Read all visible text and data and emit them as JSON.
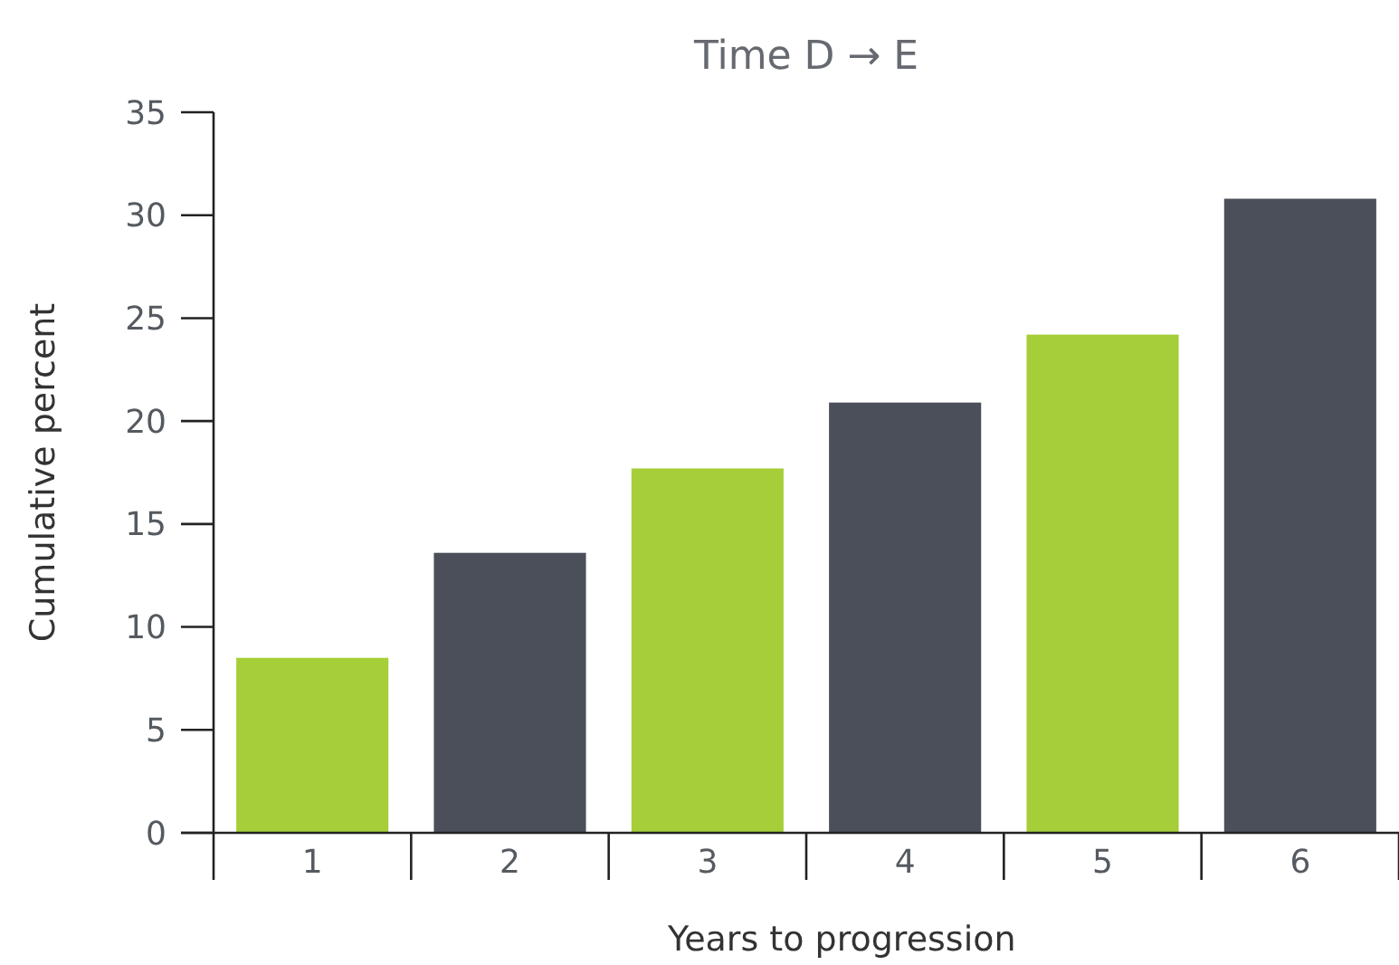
{
  "chart_data": {
    "type": "bar",
    "title": "Time D → E",
    "xlabel": "Years to progression",
    "ylabel": "Cumulative percent",
    "categories": [
      "1",
      "2",
      "3",
      "4",
      "5",
      "6"
    ],
    "values": [
      8.5,
      13.6,
      17.7,
      20.9,
      24.2,
      30.8
    ],
    "colors": [
      "#a6ce39",
      "#4b4f5a",
      "#a6ce39",
      "#4b4f5a",
      "#a6ce39",
      "#4b4f5a"
    ],
    "ylim": [
      0,
      35
    ],
    "yticks": [
      0,
      5,
      10,
      15,
      20,
      25,
      30,
      35
    ],
    "grid": false
  }
}
